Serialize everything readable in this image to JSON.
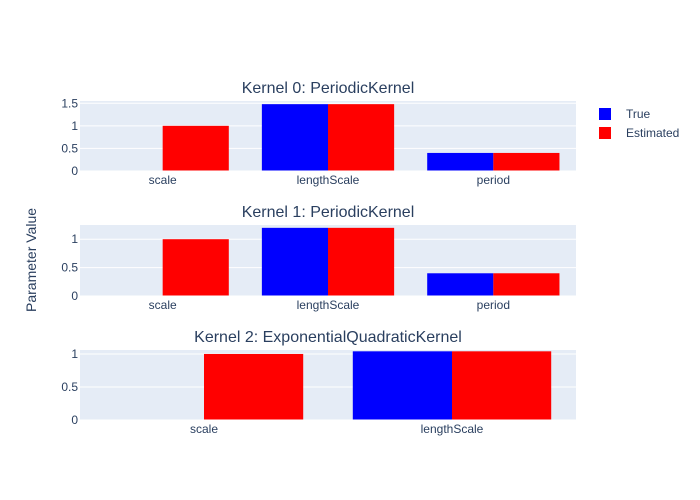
{
  "colors": {
    "background": "#ffffff",
    "plot_bg": "#e5ecf6",
    "grid": "#ffffff",
    "text": "#2a3f5f",
    "true": "#0000ff",
    "estimated": "#ff0000"
  },
  "ylabel": "Parameter Value",
  "legend": {
    "placement": "top-right",
    "items": [
      {
        "label": "True",
        "color": "#0000ff"
      },
      {
        "label": "Estimated",
        "color": "#ff0000"
      }
    ]
  },
  "chart_data": [
    {
      "type": "bar",
      "title": "Kernel 0: PeriodicKernel",
      "categories": [
        "scale",
        "lengthScale",
        "period"
      ],
      "series": [
        {
          "name": "True",
          "values": [
            0,
            1.48,
            0.4
          ]
        },
        {
          "name": "Estimated",
          "values": [
            1.0,
            1.48,
            0.4
          ]
        }
      ],
      "ylim": [
        0,
        1.55
      ],
      "yticks": [
        0,
        0.5,
        1,
        1.5
      ],
      "ytick_labels": [
        "0",
        "0.5",
        "1",
        "1.5"
      ]
    },
    {
      "type": "bar",
      "title": "Kernel 1: PeriodicKernel",
      "categories": [
        "scale",
        "lengthScale",
        "period"
      ],
      "series": [
        {
          "name": "True",
          "values": [
            0,
            1.2,
            0.4
          ]
        },
        {
          "name": "Estimated",
          "values": [
            1.0,
            1.2,
            0.4
          ]
        }
      ],
      "ylim": [
        0,
        1.25
      ],
      "yticks": [
        0,
        0.5,
        1
      ],
      "ytick_labels": [
        "0",
        "0.5",
        "1"
      ]
    },
    {
      "type": "bar",
      "title": "Kernel 2: ExponentialQuadraticKernel",
      "categories": [
        "scale",
        "lengthScale"
      ],
      "series": [
        {
          "name": "True",
          "values": [
            0,
            1.04
          ]
        },
        {
          "name": "Estimated",
          "values": [
            1.0,
            1.04
          ]
        }
      ],
      "ylim": [
        0,
        1.06
      ],
      "yticks": [
        0,
        0.5,
        1
      ],
      "ytick_labels": [
        "0",
        "0.5",
        "1"
      ]
    }
  ]
}
